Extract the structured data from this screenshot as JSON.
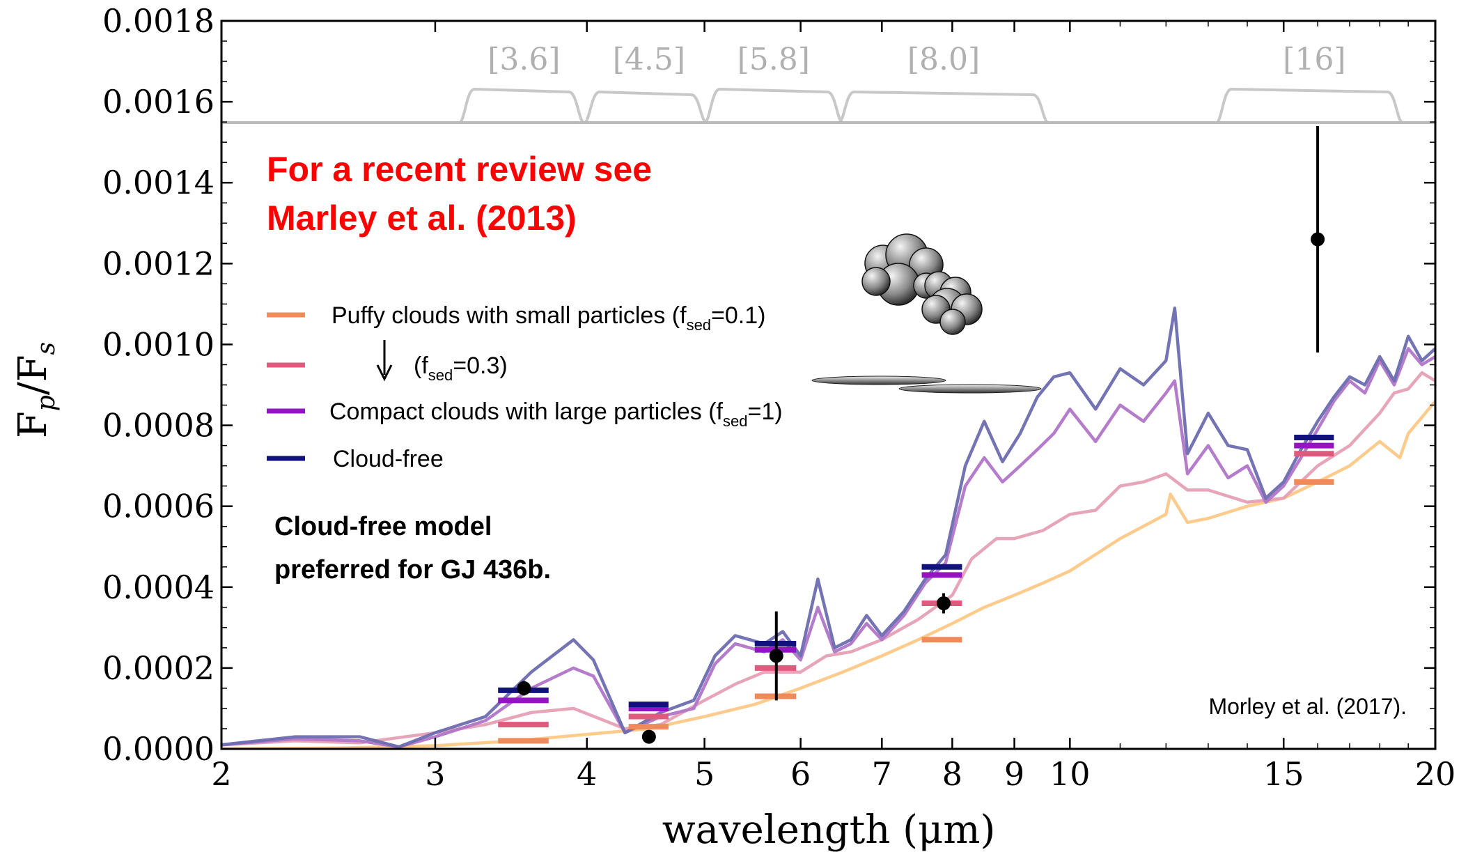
{
  "chart_data": {
    "type": "line",
    "xlabel": "wavelength (μm)",
    "ylabel_main": "F",
    "ylabel_sub1": "p",
    "ylabel_mid": "/F",
    "ylabel_sub2": "s",
    "x_scale": "log",
    "xlim": [
      2,
      20
    ],
    "ylim": [
      0,
      0.0018
    ],
    "x_ticks": [
      {
        "value": 2,
        "label": "2"
      },
      {
        "value": 3,
        "label": "3"
      },
      {
        "value": 4,
        "label": "4"
      },
      {
        "value": 5,
        "label": "5"
      },
      {
        "value": 6,
        "label": "6"
      },
      {
        "value": 7,
        "label": "7"
      },
      {
        "value": 8,
        "label": "8"
      },
      {
        "value": 9,
        "label": "9"
      },
      {
        "value": 10,
        "label": "10"
      },
      {
        "value": 15,
        "label": "15"
      },
      {
        "value": 20,
        "label": "20"
      }
    ],
    "y_ticks": [
      {
        "value": 0.0,
        "label": "0.0000"
      },
      {
        "value": 0.0002,
        "label": "0.0002"
      },
      {
        "value": 0.0004,
        "label": "0.0004"
      },
      {
        "value": 0.0006,
        "label": "0.0006"
      },
      {
        "value": 0.0008,
        "label": "0.0008"
      },
      {
        "value": 0.001,
        "label": "0.0010"
      },
      {
        "value": 0.0012,
        "label": "0.0012"
      },
      {
        "value": 0.0014,
        "label": "0.0014"
      },
      {
        "value": 0.0016,
        "label": "0.0016"
      },
      {
        "value": 0.0018,
        "label": "0.0018"
      }
    ],
    "series": [
      {
        "name": "Puffy clouds with small particles (f_sed=0.1)",
        "color": "#fdc886",
        "x": [
          2.0,
          2.5,
          3.0,
          3.5,
          4.0,
          4.5,
          5.0,
          5.5,
          6.0,
          6.5,
          7.0,
          7.5,
          8.0,
          8.5,
          9.0,
          9.5,
          10.0,
          11.0,
          12.0,
          12.1,
          12.5,
          13.0,
          14.0,
          15.0,
          16.0,
          17.0,
          18.0,
          18.7,
          19.0,
          19.5,
          20.0
        ],
        "y": [
          0.0,
          2e-06,
          8e-06,
          2e-05,
          3.6e-05,
          5e-05,
          8e-05,
          0.00011,
          0.00015,
          0.00019,
          0.00023,
          0.00027,
          0.00031,
          0.00035,
          0.00038,
          0.00041,
          0.00044,
          0.00052,
          0.00058,
          0.00063,
          0.00056,
          0.00057,
          0.0006,
          0.00062,
          0.00066,
          0.0007,
          0.00076,
          0.00072,
          0.00078,
          0.00082,
          0.00086
        ]
      },
      {
        "name": "(f_sed=0.3)",
        "color": "#e5a0b4",
        "x": [
          2.0,
          2.3,
          2.6,
          3.0,
          3.3,
          3.6,
          3.9,
          4.3,
          4.6,
          5.0,
          5.3,
          5.6,
          6.0,
          6.3,
          6.6,
          7.0,
          7.5,
          8.0,
          8.3,
          8.7,
          9.0,
          9.5,
          10.0,
          10.5,
          11.0,
          11.5,
          12.0,
          12.5,
          13.0,
          14.0,
          15.0,
          16.0,
          17.0,
          18.0,
          18.5,
          19.0,
          19.5,
          20.0
        ],
        "y": [
          1e-05,
          2e-05,
          1.5e-05,
          4e-05,
          6e-05,
          9e-05,
          0.0001,
          5e-05,
          6e-05,
          0.00012,
          0.00016,
          0.00019,
          0.00019,
          0.00023,
          0.00024,
          0.00027,
          0.00032,
          0.00038,
          0.00047,
          0.00052,
          0.00052,
          0.00054,
          0.00058,
          0.00059,
          0.00065,
          0.00066,
          0.00068,
          0.00064,
          0.00064,
          0.00061,
          0.00062,
          0.0007,
          0.00075,
          0.00083,
          0.00088,
          0.00089,
          0.00093,
          0.00091
        ]
      },
      {
        "name": "Compact clouds with large particles (f_sed=1)",
        "color": "#b075c8",
        "x": [
          2.0,
          2.3,
          2.6,
          2.8,
          3.0,
          3.3,
          3.6,
          3.9,
          4.05,
          4.3,
          4.6,
          4.9,
          5.1,
          5.3,
          5.6,
          5.8,
          6.0,
          6.2,
          6.4,
          6.6,
          6.8,
          7.0,
          7.3,
          7.6,
          7.9,
          8.2,
          8.5,
          8.8,
          9.1,
          9.4,
          9.7,
          10.0,
          10.5,
          11.0,
          11.5,
          12.0,
          12.2,
          12.5,
          13.0,
          13.5,
          14.0,
          14.5,
          15.0,
          15.5,
          16.0,
          16.5,
          17.0,
          17.5,
          18.0,
          18.5,
          19.0,
          19.5,
          20.0
        ],
        "y": [
          1e-05,
          2.5e-05,
          2e-05,
          5e-06,
          3e-05,
          7e-05,
          0.00015,
          0.0002,
          0.00018,
          4e-05,
          8e-05,
          0.0001,
          0.00021,
          0.00026,
          0.00024,
          0.00027,
          0.00022,
          0.00035,
          0.00024,
          0.00026,
          0.00031,
          0.00027,
          0.00033,
          0.00041,
          0.00046,
          0.00065,
          0.00072,
          0.00066,
          0.0007,
          0.00074,
          0.00078,
          0.00084,
          0.00076,
          0.00085,
          0.00081,
          0.00088,
          0.00091,
          0.00068,
          0.00075,
          0.00067,
          0.0007,
          0.00061,
          0.00065,
          0.00072,
          0.00079,
          0.00086,
          0.00091,
          0.00088,
          0.00096,
          0.0009,
          0.00099,
          0.00095,
          0.00097
        ]
      },
      {
        "name": "Cloud-free",
        "color": "#6d6db0",
        "x": [
          2.0,
          2.3,
          2.6,
          2.8,
          3.0,
          3.3,
          3.6,
          3.9,
          4.05,
          4.3,
          4.6,
          4.9,
          5.1,
          5.3,
          5.6,
          5.8,
          6.0,
          6.2,
          6.4,
          6.6,
          6.8,
          7.0,
          7.3,
          7.6,
          7.9,
          8.2,
          8.5,
          8.8,
          9.1,
          9.4,
          9.7,
          10.0,
          10.5,
          11.0,
          11.5,
          12.0,
          12.2,
          12.5,
          13.0,
          13.5,
          14.0,
          14.5,
          15.0,
          15.5,
          16.0,
          16.5,
          17.0,
          17.5,
          18.0,
          18.5,
          19.0,
          19.5,
          20.0
        ],
        "y": [
          1e-05,
          3e-05,
          3e-05,
          5e-06,
          4e-05,
          8e-05,
          0.00019,
          0.00027,
          0.00022,
          4e-05,
          9e-05,
          0.00012,
          0.00023,
          0.00028,
          0.00026,
          0.00029,
          0.00023,
          0.00042,
          0.00025,
          0.00027,
          0.00033,
          0.00028,
          0.00034,
          0.00042,
          0.00048,
          0.0007,
          0.00081,
          0.00071,
          0.00078,
          0.00087,
          0.00092,
          0.00093,
          0.00084,
          0.00094,
          0.0009,
          0.00096,
          0.00109,
          0.00073,
          0.00083,
          0.00075,
          0.00074,
          0.00062,
          0.00066,
          0.00074,
          0.00081,
          0.00087,
          0.00092,
          0.0009,
          0.00097,
          0.00091,
          0.00102,
          0.00096,
          0.00099
        ]
      }
    ],
    "band_models": [
      {
        "x": 3.55,
        "x_left": 3.38,
        "x_right": 3.72,
        "fsed01": 2e-05,
        "fsed03": 6e-05,
        "fsed1": 0.00012,
        "cloudfree": 0.000145
      },
      {
        "x": 4.5,
        "x_left": 4.33,
        "x_right": 4.67,
        "fsed01": 5.5e-05,
        "fsed03": 8e-05,
        "fsed1": 0.0001,
        "cloudfree": 0.00011
      },
      {
        "x": 5.73,
        "x_left": 5.5,
        "x_right": 5.95,
        "fsed01": 0.00013,
        "fsed03": 0.0002,
        "fsed1": 0.000245,
        "cloudfree": 0.00026
      },
      {
        "x": 7.87,
        "x_left": 7.55,
        "x_right": 8.15,
        "fsed01": 0.00027,
        "fsed03": 0.00036,
        "fsed1": 0.00043,
        "cloudfree": 0.00045
      },
      {
        "x": 15.9,
        "x_left": 15.3,
        "x_right": 16.5,
        "fsed01": 0.00066,
        "fsed03": 0.00073,
        "fsed1": 0.00075,
        "cloudfree": 0.00077
      }
    ],
    "observations": [
      {
        "x": 3.55,
        "y": 0.00015,
        "err": 1.8e-05
      },
      {
        "x": 4.5,
        "y": 3e-05,
        "err": 0.0
      },
      {
        "x": 5.73,
        "y": 0.00023,
        "err": 0.00011
      },
      {
        "x": 7.87,
        "y": 0.00036,
        "err": 2.5e-05
      },
      {
        "x": 16.0,
        "y": 0.00126,
        "err": 0.00028
      }
    ],
    "filter_bands": [
      {
        "label": "[3.6]",
        "start": 3.14,
        "end": 3.98,
        "label_x": 3.55
      },
      {
        "label": "[4.5]",
        "start": 3.98,
        "end": 5.02,
        "label_x": 4.5
      },
      {
        "label": "[5.8]",
        "start": 5.0,
        "end": 6.5,
        "label_x": 5.7
      },
      {
        "label": "[8.0]",
        "start": 6.45,
        "end": 9.6,
        "label_x": 7.87
      },
      {
        "label": "[16]",
        "start": 13.2,
        "end": 18.8,
        "label_x": 15.9
      }
    ],
    "legend": [
      {
        "label": "Puffy clouds with small particles (f",
        "sub": "sed",
        "suffix": "=0.1)",
        "color": "#f08a5b"
      },
      {
        "label": "(f",
        "sub": "sed",
        "suffix": "=0.3)",
        "color": "#e05a7e"
      },
      {
        "label": "Compact clouds with large particles (f",
        "sub": "sed",
        "suffix": "=1)",
        "color": "#9314c2"
      },
      {
        "label": "Cloud-free",
        "sub": "",
        "suffix": "",
        "color": "#12127e"
      }
    ]
  },
  "annotations": {
    "review_line1": "For a recent review see",
    "review_line2": "Marley et al. (2013)",
    "preferred_line1": "Cloud-free model",
    "preferred_line2": "preferred for GJ 436b.",
    "citation": "Morley et al. (2017)."
  },
  "icons": {
    "arrow": "down-arrow-icon",
    "puffy": "puffy-cloud-icon",
    "compact": "flat-cloud-icon"
  }
}
